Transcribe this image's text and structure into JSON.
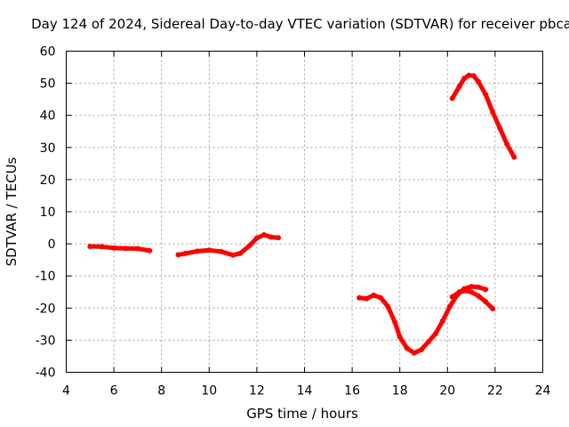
{
  "chart_data": {
    "type": "line",
    "title": "Day 124 of 2024, Sidereal Day-to-day VTEC variation (SDTVAR) for receiver pbca",
    "xlabel": "GPS time / hours",
    "ylabel": "SDTVAR / TECUs",
    "xlim": [
      4,
      24
    ],
    "ylim": [
      -40,
      60
    ],
    "xticks": [
      4,
      6,
      8,
      10,
      12,
      14,
      16,
      18,
      20,
      22,
      24
    ],
    "yticks": [
      -40,
      -30,
      -20,
      -10,
      0,
      10,
      20,
      30,
      40,
      50,
      60
    ],
    "grid": true,
    "series_color": "#ff0000",
    "series": [
      {
        "name": "segment-1",
        "x": [
          5.0,
          5.5,
          6.0,
          6.5,
          7.0,
          7.5
        ],
        "y": [
          -0.8,
          -0.9,
          -1.3,
          -1.4,
          -1.5,
          -2.1
        ]
      },
      {
        "name": "segment-2",
        "x": [
          8.7,
          9.0,
          9.5,
          10.0,
          10.5,
          11.0,
          11.3,
          11.7,
          12.0,
          12.3,
          12.6,
          12.9
        ],
        "y": [
          -3.4,
          -3.0,
          -2.3,
          -2.0,
          -2.4,
          -3.5,
          -3.0,
          -0.5,
          1.8,
          2.8,
          2.1,
          1.9
        ]
      },
      {
        "name": "segment-3",
        "x": [
          16.3,
          16.6,
          16.9,
          17.2,
          17.5,
          17.8,
          18.0,
          18.3,
          18.6,
          18.9,
          19.2,
          19.5,
          19.8,
          20.1,
          20.4,
          20.7,
          21.0,
          21.3,
          21.6
        ],
        "y": [
          -16.8,
          -17.1,
          -16.0,
          -16.8,
          -19.5,
          -24.5,
          -29.0,
          -32.5,
          -34.0,
          -33.0,
          -30.5,
          -28.0,
          -24.0,
          -19.5,
          -16.0,
          -14.0,
          -13.3,
          -13.5,
          -14.2
        ]
      },
      {
        "name": "segment-4",
        "x": [
          20.2,
          20.5,
          20.8,
          21.0,
          21.3,
          21.6,
          21.9
        ],
        "y": [
          -16.5,
          -15.0,
          -14.6,
          -15.0,
          -16.2,
          -18.0,
          -20.2
        ]
      },
      {
        "name": "segment-5",
        "x": [
          20.2,
          20.5,
          20.7,
          20.9,
          21.1,
          21.3,
          21.6,
          21.9,
          22.2,
          22.5,
          22.8
        ],
        "y": [
          45.3,
          49.0,
          51.5,
          52.5,
          52.3,
          50.5,
          46.5,
          41.0,
          36.0,
          31.0,
          27.0
        ]
      }
    ]
  }
}
